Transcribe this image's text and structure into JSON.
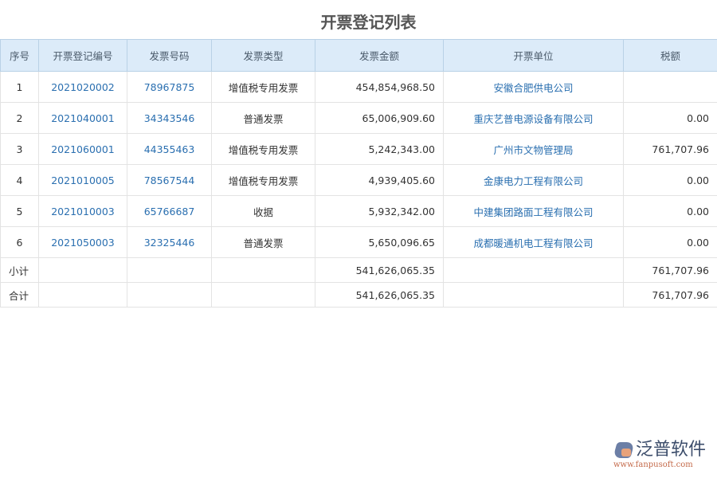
{
  "title": "开票登记列表",
  "headers": [
    "序号",
    "开票登记编号",
    "发票号码",
    "发票类型",
    "发票金额",
    "开票单位",
    "税额"
  ],
  "rows": [
    [
      "1",
      "2021020002",
      "78967875",
      "增值税专用发票",
      "454,854,968.50",
      "安徽合肥供电公司",
      ""
    ],
    [
      "2",
      "2021040001",
      "34343546",
      "普通发票",
      "65,006,909.60",
      "重庆艺普电源设备有限公司",
      "0.00"
    ],
    [
      "3",
      "2021060001",
      "44355463",
      "增值税专用发票",
      "5,242,343.00",
      "广州市文物管理局",
      "761,707.96"
    ],
    [
      "4",
      "2021010005",
      "78567544",
      "增值税专用发票",
      "4,939,405.60",
      "金康电力工程有限公司",
      "0.00"
    ],
    [
      "5",
      "2021010003",
      "65766687",
      "收据",
      "5,932,342.00",
      "中建集团路面工程有限公司",
      "0.00"
    ],
    [
      "6",
      "2021050003",
      "32325446",
      "普通发票",
      "5,650,096.65",
      "成都暖通机电工程有限公司",
      "0.00"
    ]
  ],
  "subtotal": {
    "label": "小计",
    "amount": "541,626,065.35",
    "tax": "761,707.96"
  },
  "total": {
    "label": "合计",
    "amount": "541,626,065.35",
    "tax": "761,707.96"
  },
  "logo": {
    "name": "泛普软件",
    "url": "www.fanpusoft.com"
  }
}
